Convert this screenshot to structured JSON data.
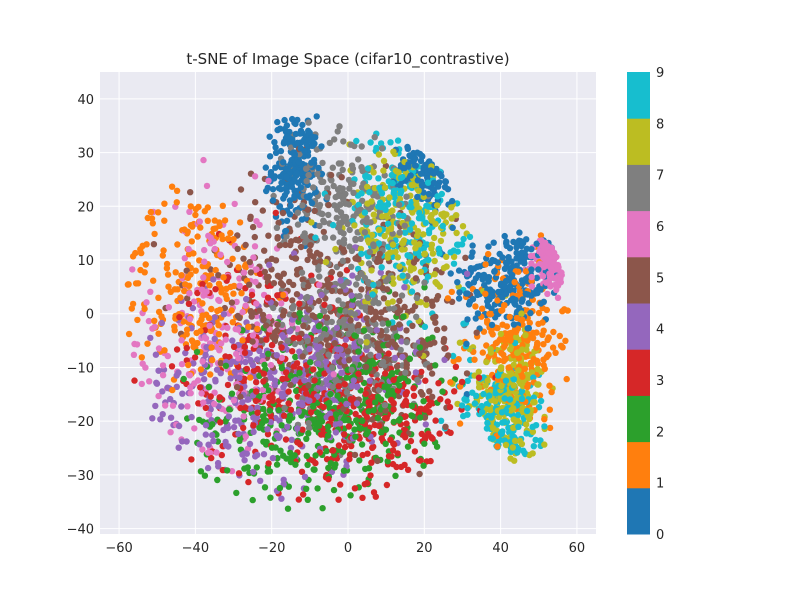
{
  "chart_data": {
    "type": "scatter",
    "title": "t-SNE of Image Space (cifar10_contrastive)",
    "xlabel": "",
    "ylabel": "",
    "xlim": [
      -65,
      65
    ],
    "ylim": [
      -41,
      45
    ],
    "xticks": [
      -60,
      -40,
      -20,
      0,
      20,
      40,
      60
    ],
    "yticks": [
      -40,
      -30,
      -20,
      -10,
      0,
      10,
      20,
      30,
      40
    ],
    "grid": true,
    "plot_background": "#eaeaf2",
    "grid_color": "#ffffff",
    "colorbar": {
      "ticks": [
        0,
        1,
        2,
        3,
        4,
        5,
        6,
        7,
        8,
        9
      ],
      "colors": [
        "#1f77b4",
        "#ff7f0e",
        "#2ca02c",
        "#d62728",
        "#9467bd",
        "#8c564b",
        "#e377c2",
        "#7f7f7f",
        "#bcbd22",
        "#17becf"
      ]
    },
    "clusters": [
      {
        "label": 0,
        "cx": 42,
        "cy": 6,
        "sx": 7,
        "sy": 5
      },
      {
        "label": 0,
        "cx": -14,
        "cy": 27,
        "sx": 3,
        "sy": 5
      },
      {
        "label": 0,
        "cx": 22,
        "cy": 28,
        "sx": 4,
        "sy": 4
      },
      {
        "label": 1,
        "cx": 44,
        "cy": -5,
        "sx": 7,
        "sy": 8
      },
      {
        "label": 1,
        "cx": -40,
        "cy": 5,
        "sx": 10,
        "sy": 9
      },
      {
        "label": 2,
        "cx": -15,
        "cy": -20,
        "sx": 12,
        "sy": 8
      },
      {
        "label": 2,
        "cx": 5,
        "cy": -15,
        "sx": 10,
        "sy": 8
      },
      {
        "label": 3,
        "cx": -20,
        "cy": -10,
        "sx": 12,
        "sy": 10
      },
      {
        "label": 3,
        "cx": 10,
        "cy": -20,
        "sx": 10,
        "sy": 7
      },
      {
        "label": 4,
        "cx": -30,
        "cy": -15,
        "sx": 12,
        "sy": 9
      },
      {
        "label": 4,
        "cx": -5,
        "cy": -10,
        "sx": 10,
        "sy": 8
      },
      {
        "label": 5,
        "cx": -15,
        "cy": 5,
        "sx": 13,
        "sy": 10
      },
      {
        "label": 5,
        "cx": 10,
        "cy": -5,
        "sx": 10,
        "sy": 8
      },
      {
        "label": 6,
        "cx": -35,
        "cy": -5,
        "sx": 12,
        "sy": 12
      },
      {
        "label": 6,
        "cx": 53,
        "cy": 10,
        "sx": 2,
        "sy": 2
      },
      {
        "label": 7,
        "cx": 0,
        "cy": 20,
        "sx": 8,
        "sy": 8
      },
      {
        "label": 7,
        "cx": 0,
        "cy": -5,
        "sx": 10,
        "sy": 8
      },
      {
        "label": 8,
        "cx": 15,
        "cy": 15,
        "sx": 8,
        "sy": 8
      },
      {
        "label": 8,
        "cx": 42,
        "cy": -15,
        "sx": 5,
        "sy": 6
      },
      {
        "label": 9,
        "cx": 15,
        "cy": 20,
        "sx": 8,
        "sy": 8
      },
      {
        "label": 9,
        "cx": 40,
        "cy": -20,
        "sx": 5,
        "sy": 6
      }
    ]
  }
}
